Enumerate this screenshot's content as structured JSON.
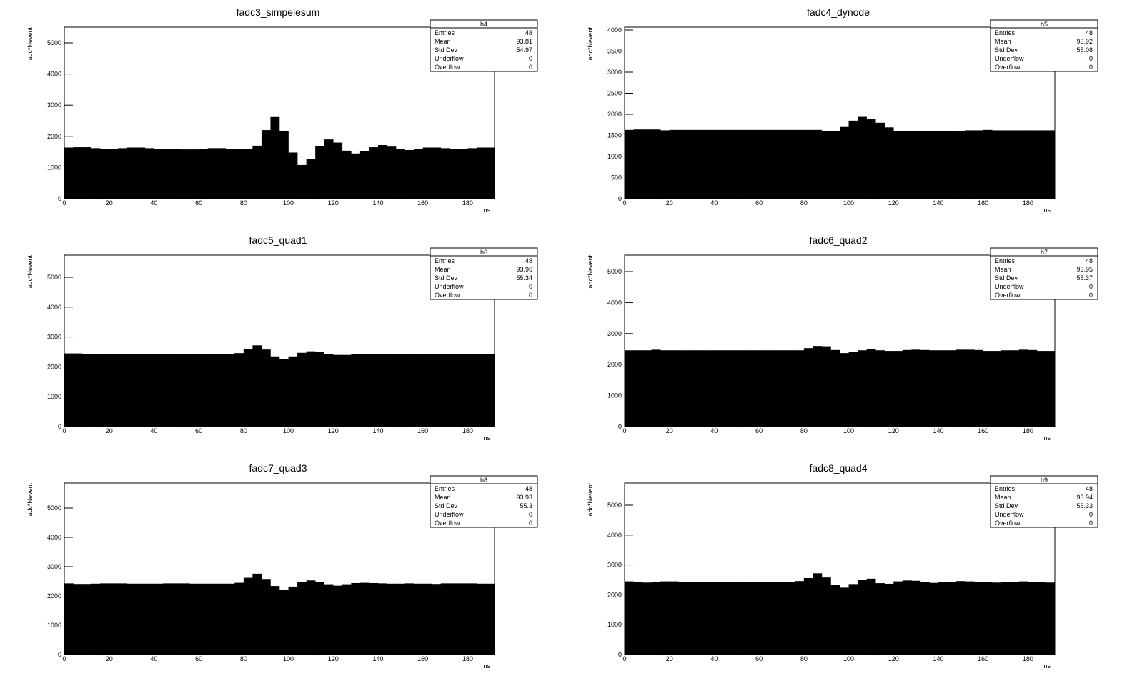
{
  "chart_data": [
    {
      "type": "histogram",
      "title": "fadc3_simpelesum",
      "x_label": "ns",
      "y_label": "adc*Nevent",
      "color": "#000000",
      "bins": [
        0,
        4,
        8,
        12,
        16,
        20,
        24,
        28,
        32,
        36,
        40,
        44,
        48,
        52,
        56,
        60,
        64,
        68,
        72,
        76,
        80,
        84,
        88,
        92,
        96,
        100,
        104,
        108,
        112,
        116,
        120,
        124,
        128,
        132,
        136,
        140,
        144,
        148,
        152,
        156,
        160,
        164,
        168,
        172,
        176,
        180,
        184,
        188,
        192
      ],
      "values": [
        1640,
        1650,
        1650,
        1620,
        1600,
        1600,
        1620,
        1640,
        1640,
        1620,
        1600,
        1600,
        1600,
        1580,
        1580,
        1600,
        1620,
        1620,
        1600,
        1600,
        1600,
        1700,
        2200,
        2620,
        2180,
        1480,
        1080,
        1270,
        1680,
        1900,
        1800,
        1540,
        1450,
        1530,
        1650,
        1720,
        1670,
        1590,
        1560,
        1600,
        1640,
        1640,
        1620,
        1600,
        1600,
        1620,
        1640,
        1640
      ],
      "xlim": [
        0,
        192
      ],
      "xticks": [
        0,
        20,
        40,
        60,
        80,
        100,
        120,
        140,
        160,
        180
      ],
      "ylim": [
        0,
        5505
      ],
      "yticks": [
        0,
        1000,
        2000,
        3000,
        4000,
        5000
      ],
      "stats": {
        "name": "h4",
        "rows": [
          [
            "Entries",
            48
          ],
          [
            "Mean",
            93.81
          ],
          [
            "Std Dev",
            54.97
          ],
          [
            "Underflow",
            0
          ],
          [
            "Overflow",
            0
          ]
        ]
      }
    },
    {
      "type": "histogram",
      "title": "fadc4_dynode",
      "x_label": "ns",
      "y_label": "adc*Nevent",
      "color": "#000000",
      "bins": [
        0,
        4,
        8,
        12,
        16,
        20,
        24,
        28,
        32,
        36,
        40,
        44,
        48,
        52,
        56,
        60,
        64,
        68,
        72,
        76,
        80,
        84,
        88,
        92,
        96,
        100,
        104,
        108,
        112,
        116,
        120,
        124,
        128,
        132,
        136,
        140,
        144,
        148,
        152,
        156,
        160,
        164,
        168,
        172,
        176,
        180,
        184,
        188,
        192
      ],
      "values": [
        1630,
        1640,
        1640,
        1640,
        1620,
        1630,
        1630,
        1630,
        1630,
        1630,
        1630,
        1630,
        1630,
        1630,
        1630,
        1630,
        1630,
        1630,
        1630,
        1630,
        1630,
        1630,
        1610,
        1610,
        1700,
        1850,
        1940,
        1890,
        1800,
        1690,
        1610,
        1610,
        1610,
        1610,
        1610,
        1610,
        1600,
        1610,
        1620,
        1620,
        1630,
        1620,
        1620,
        1620,
        1620,
        1620,
        1620,
        1620
      ],
      "xlim": [
        0,
        192
      ],
      "xticks": [
        0,
        20,
        40,
        60,
        80,
        100,
        120,
        140,
        160,
        180
      ],
      "ylim": [
        0,
        4068
      ],
      "yticks": [
        0,
        500,
        1000,
        1500,
        2000,
        2500,
        3000,
        3500,
        4000
      ],
      "stats": {
        "name": "h5",
        "rows": [
          [
            "Entries",
            48
          ],
          [
            "Mean",
            93.92
          ],
          [
            "Std Dev",
            55.08
          ],
          [
            "Underflow",
            0
          ],
          [
            "Overflow",
            0
          ]
        ]
      }
    },
    {
      "type": "histogram",
      "title": "fadc5_quad1",
      "x_label": "ns",
      "y_label": "adc*Nevent",
      "color": "#000000",
      "bins": [
        0,
        4,
        8,
        12,
        16,
        20,
        24,
        28,
        32,
        36,
        40,
        44,
        48,
        52,
        56,
        60,
        64,
        68,
        72,
        76,
        80,
        84,
        88,
        92,
        96,
        100,
        104,
        108,
        112,
        116,
        120,
        124,
        128,
        132,
        136,
        140,
        144,
        148,
        152,
        156,
        160,
        164,
        168,
        172,
        176,
        180,
        184,
        188,
        192
      ],
      "values": [
        2450,
        2450,
        2440,
        2430,
        2440,
        2440,
        2440,
        2440,
        2440,
        2430,
        2430,
        2430,
        2440,
        2440,
        2440,
        2430,
        2430,
        2420,
        2430,
        2460,
        2600,
        2720,
        2580,
        2350,
        2260,
        2350,
        2470,
        2520,
        2490,
        2420,
        2400,
        2400,
        2430,
        2440,
        2440,
        2440,
        2430,
        2430,
        2440,
        2440,
        2440,
        2440,
        2440,
        2430,
        2420,
        2420,
        2440,
        2440
      ],
      "xlim": [
        0,
        192
      ],
      "xticks": [
        0,
        20,
        40,
        60,
        80,
        100,
        120,
        140,
        160,
        180
      ],
      "ylim": [
        0,
        5742
      ],
      "yticks": [
        0,
        1000,
        2000,
        3000,
        4000,
        5000
      ],
      "stats": {
        "name": "h6",
        "rows": [
          [
            "Entries",
            48
          ],
          [
            "Mean",
            93.96
          ],
          [
            "Std Dev",
            55.34
          ],
          [
            "Underflow",
            0
          ],
          [
            "Overflow",
            0
          ]
        ]
      }
    },
    {
      "type": "histogram",
      "title": "fadc6_quad2",
      "x_label": "ns",
      "y_label": "adc*Nevent",
      "color": "#000000",
      "bins": [
        0,
        4,
        8,
        12,
        16,
        20,
        24,
        28,
        32,
        36,
        40,
        44,
        48,
        52,
        56,
        60,
        64,
        68,
        72,
        76,
        80,
        84,
        88,
        92,
        96,
        100,
        104,
        108,
        112,
        116,
        120,
        124,
        128,
        132,
        136,
        140,
        144,
        148,
        152,
        156,
        160,
        164,
        168,
        172,
        176,
        180,
        184,
        188,
        192
      ],
      "values": [
        2460,
        2460,
        2460,
        2480,
        2460,
        2460,
        2460,
        2460,
        2460,
        2460,
        2460,
        2460,
        2460,
        2460,
        2460,
        2460,
        2460,
        2460,
        2460,
        2460,
        2530,
        2600,
        2590,
        2470,
        2370,
        2400,
        2460,
        2510,
        2460,
        2440,
        2440,
        2470,
        2480,
        2470,
        2460,
        2460,
        2460,
        2480,
        2480,
        2470,
        2440,
        2440,
        2460,
        2460,
        2480,
        2470,
        2440,
        2440
      ],
      "xlim": [
        0,
        192
      ],
      "xticks": [
        0,
        20,
        40,
        60,
        80,
        100,
        120,
        140,
        160,
        180
      ],
      "ylim": [
        0,
        5530
      ],
      "yticks": [
        0,
        1000,
        2000,
        3000,
        4000,
        5000
      ],
      "stats": {
        "name": "h7",
        "rows": [
          [
            "Entries",
            48
          ],
          [
            "Mean",
            93.95
          ],
          [
            "Std Dev",
            55.37
          ],
          [
            "Underflow",
            0
          ],
          [
            "Overflow",
            0
          ]
        ]
      }
    },
    {
      "type": "histogram",
      "title": "fadc7_quad3",
      "x_label": "ns",
      "y_label": "adc*Nevent",
      "color": "#000000",
      "bins": [
        0,
        4,
        8,
        12,
        16,
        20,
        24,
        28,
        32,
        36,
        40,
        44,
        48,
        52,
        56,
        60,
        64,
        68,
        72,
        76,
        80,
        84,
        88,
        92,
        96,
        100,
        104,
        108,
        112,
        116,
        120,
        124,
        128,
        132,
        136,
        140,
        144,
        148,
        152,
        156,
        160,
        164,
        168,
        172,
        176,
        180,
        184,
        188,
        192
      ],
      "values": [
        2430,
        2410,
        2410,
        2420,
        2430,
        2430,
        2430,
        2420,
        2420,
        2420,
        2420,
        2430,
        2430,
        2430,
        2420,
        2420,
        2420,
        2420,
        2420,
        2450,
        2620,
        2760,
        2580,
        2340,
        2220,
        2320,
        2480,
        2530,
        2480,
        2400,
        2350,
        2400,
        2440,
        2450,
        2440,
        2430,
        2420,
        2420,
        2430,
        2420,
        2420,
        2410,
        2430,
        2430,
        2430,
        2430,
        2420,
        2420
      ],
      "xlim": [
        0,
        192
      ],
      "xticks": [
        0,
        20,
        40,
        60,
        80,
        100,
        120,
        140,
        160,
        180
      ],
      "ylim": [
        0,
        5854
      ],
      "yticks": [
        0,
        1000,
        2000,
        3000,
        4000,
        5000
      ],
      "stats": {
        "name": "h8",
        "rows": [
          [
            "Entries",
            48
          ],
          [
            "Mean",
            93.93
          ],
          [
            "Std Dev",
            55.3
          ],
          [
            "Underflow",
            0
          ],
          [
            "Overflow",
            0
          ]
        ]
      }
    },
    {
      "type": "histogram",
      "title": "fadc8_quad4",
      "x_label": "ns",
      "y_label": "adc*Nevent",
      "color": "#000000",
      "bins": [
        0,
        4,
        8,
        12,
        16,
        20,
        24,
        28,
        32,
        36,
        40,
        44,
        48,
        52,
        56,
        60,
        64,
        68,
        72,
        76,
        80,
        84,
        88,
        92,
        96,
        100,
        104,
        108,
        112,
        116,
        120,
        124,
        128,
        132,
        136,
        140,
        144,
        148,
        152,
        156,
        160,
        164,
        168,
        172,
        176,
        180,
        184,
        188,
        192
      ],
      "values": [
        2450,
        2420,
        2410,
        2430,
        2450,
        2450,
        2430,
        2430,
        2430,
        2430,
        2430,
        2430,
        2430,
        2430,
        2430,
        2430,
        2430,
        2430,
        2430,
        2460,
        2560,
        2720,
        2580,
        2340,
        2240,
        2360,
        2510,
        2540,
        2390,
        2370,
        2450,
        2480,
        2470,
        2430,
        2400,
        2430,
        2440,
        2460,
        2450,
        2440,
        2430,
        2410,
        2430,
        2440,
        2450,
        2430,
        2420,
        2410
      ],
      "xlim": [
        0,
        192
      ],
      "xticks": [
        0,
        20,
        40,
        60,
        80,
        100,
        120,
        140,
        160,
        180
      ],
      "ylim": [
        0,
        5742
      ],
      "yticks": [
        0,
        1000,
        2000,
        3000,
        4000,
        5000
      ],
      "stats": {
        "name": "h9",
        "rows": [
          [
            "Entries",
            48
          ],
          [
            "Mean",
            93.94
          ],
          [
            "Std Dev",
            55.33
          ],
          [
            "Underflow",
            0
          ],
          [
            "Overflow",
            0
          ]
        ]
      }
    }
  ]
}
